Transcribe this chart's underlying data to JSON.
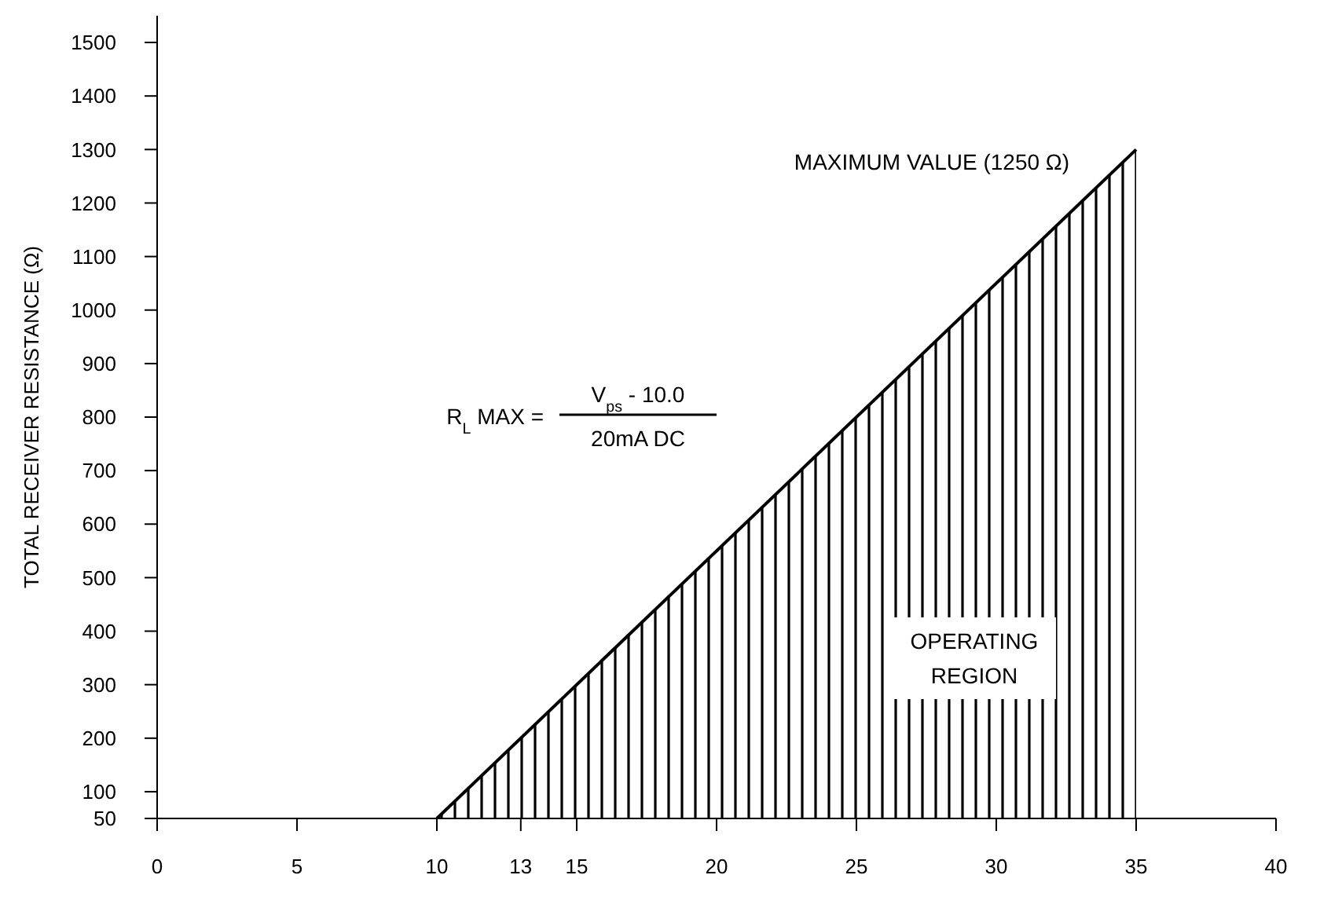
{
  "chart_data": {
    "type": "area",
    "ylabel": "TOTAL RECEIVER RESISTANCE (Ω)",
    "annotations": [
      "MAXIMUM VALUE (1250 Ω)",
      "R$_{L}$ MAX =",
      "V$_{ps}$ - 10.0",
      "20mA DC",
      "OPERATING REGION"
    ],
    "x": [
      10,
      35
    ],
    "series": [
      {
        "color": "#000000",
        "values": [
          50,
          1300
        ]
      }
    ],
    "xlim": [
      0,
      40
    ],
    "xticks": [
      0,
      5,
      10,
      13,
      15,
      20,
      25,
      30,
      35,
      40
    ],
    "ylim": [
      50,
      1550
    ],
    "yticks": [
      50,
      100,
      200,
      300,
      400,
      500,
      600,
      700,
      800,
      900,
      1000,
      1100,
      1200,
      1300,
      1400,
      1500
    ]
  }
}
